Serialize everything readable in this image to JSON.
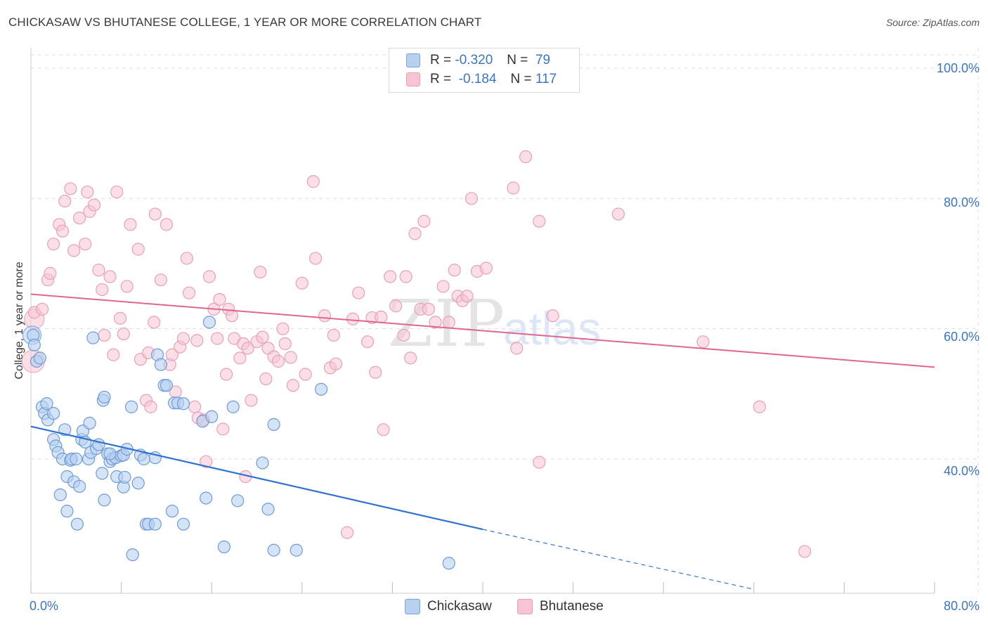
{
  "title": "CHICKASAW VS BHUTANESE COLLEGE, 1 YEAR OR MORE CORRELATION CHART",
  "source": "Source: ZipAtlas.com",
  "watermark": "ZIPatlas",
  "colors": {
    "blue": "#3a75c4",
    "blue_fill": "#b8d0f0",
    "blue_line": "#2f72d0",
    "pink_fill": "#f8c4d4",
    "pink_stroke": "#e8a0b8",
    "pink_line": "#e06690",
    "grid": "#dddddd"
  },
  "legend": {
    "rows": [
      {
        "r_label": "R =",
        "r_value": "-0.320",
        "n_label": "N =",
        "n_value": "79"
      },
      {
        "r_label": "R =",
        "r_value": "-0.184",
        "n_label": "N =",
        "n_value": "117"
      }
    ]
  },
  "chart_data": {
    "type": "scatter",
    "title": "CHICKASAW VS BHUTANESE COLLEGE, 1 YEAR OR MORE CORRELATION CHART",
    "xlabel": "",
    "ylabel": "College, 1 year or more",
    "xlim": [
      0,
      80
    ],
    "ylim": [
      20,
      103
    ],
    "x_ticks": [
      "0.0%",
      "80.0%"
    ],
    "y_ticks": [
      "40.0%",
      "60.0%",
      "80.0%",
      "100.0%"
    ],
    "grid": true,
    "legend_position": "top-center",
    "series": [
      {
        "name": "Chickasaw",
        "color": "#3a75c4",
        "trend": {
          "x0": 0,
          "y0": 45,
          "x1": 40,
          "y1": 29.2,
          "dash_to_x": 64,
          "dash_to_y": 20
        },
        "points": [
          [
            0.2,
            59
          ],
          [
            0.3,
            57.5
          ],
          [
            0.5,
            55
          ],
          [
            0.8,
            55.5
          ],
          [
            1,
            48
          ],
          [
            1.2,
            47
          ],
          [
            1.4,
            48.5
          ],
          [
            1.5,
            46
          ],
          [
            2,
            43
          ],
          [
            2.2,
            42
          ],
          [
            2.4,
            41
          ],
          [
            2.8,
            40
          ],
          [
            3,
            44.5
          ],
          [
            3.2,
            37.3
          ],
          [
            3.5,
            39.8
          ],
          [
            3.6,
            40
          ],
          [
            2.6,
            34.5
          ],
          [
            3.2,
            32
          ],
          [
            3.8,
            36.5
          ],
          [
            4.3,
            35.8
          ],
          [
            4.1,
            30
          ],
          [
            4.5,
            43
          ],
          [
            4.6,
            44.3
          ],
          [
            4.8,
            42.6
          ],
          [
            5.1,
            40
          ],
          [
            5.3,
            41
          ],
          [
            5.2,
            45.5
          ],
          [
            5.8,
            41.6
          ],
          [
            6,
            42.2
          ],
          [
            6.3,
            37.8
          ],
          [
            6.4,
            49
          ],
          [
            6.5,
            49.5
          ],
          [
            6.8,
            40.8
          ],
          [
            7,
            39.6
          ],
          [
            7.2,
            40
          ],
          [
            7.5,
            40.2
          ],
          [
            7.6,
            37.3
          ],
          [
            8,
            40.5
          ],
          [
            8.2,
            40.6
          ],
          [
            8.2,
            35.7
          ],
          [
            8.3,
            37.2
          ],
          [
            8.5,
            41.5
          ],
          [
            8.9,
            48
          ],
          [
            9.5,
            36.3
          ],
          [
            9.7,
            40.6
          ],
          [
            10.2,
            30
          ],
          [
            10.4,
            30
          ],
          [
            11,
            40.2
          ],
          [
            11.2,
            56
          ],
          [
            11.5,
            54.5
          ],
          [
            11.8,
            51.3
          ],
          [
            12,
            51.3
          ],
          [
            12.5,
            32
          ],
          [
            12.7,
            48.6
          ],
          [
            13,
            48.6
          ],
          [
            13.5,
            30
          ],
          [
            15.2,
            45.8
          ],
          [
            15.5,
            34
          ],
          [
            15.8,
            61
          ],
          [
            16,
            46.5
          ],
          [
            17.1,
            26.5
          ],
          [
            17.9,
            48
          ],
          [
            18.3,
            33.6
          ],
          [
            20.5,
            39.4
          ],
          [
            21,
            32.3
          ],
          [
            21.5,
            45.3
          ],
          [
            21.5,
            26
          ],
          [
            23.5,
            26
          ],
          [
            25.7,
            50.7
          ],
          [
            37,
            24
          ],
          [
            5.5,
            58.6
          ],
          [
            11,
            30
          ],
          [
            6.5,
            33.7
          ],
          [
            9,
            25.3
          ],
          [
            7,
            40.8
          ],
          [
            13.5,
            48.5
          ],
          [
            10,
            40
          ],
          [
            4,
            40
          ],
          [
            2,
            47
          ]
        ]
      },
      {
        "name": "Bhutanese",
        "color": "#e8a0b8",
        "trend": {
          "x0": 0,
          "y0": 65.3,
          "x1": 80,
          "y1": 54.1
        },
        "points": [
          [
            0.3,
            62.5
          ],
          [
            0.5,
            55
          ],
          [
            1,
            63
          ],
          [
            1.5,
            67.5
          ],
          [
            1.7,
            68.5
          ],
          [
            2,
            73
          ],
          [
            2.5,
            76
          ],
          [
            2.8,
            75
          ],
          [
            3,
            79.6
          ],
          [
            3.5,
            81.5
          ],
          [
            3.8,
            72
          ],
          [
            4.3,
            77
          ],
          [
            4.8,
            73
          ],
          [
            5,
            81
          ],
          [
            5.2,
            78
          ],
          [
            5.6,
            79
          ],
          [
            6,
            69
          ],
          [
            6.3,
            66
          ],
          [
            6.5,
            59
          ],
          [
            7,
            68
          ],
          [
            7.3,
            56
          ],
          [
            7.6,
            81
          ],
          [
            7.9,
            61.6
          ],
          [
            8.2,
            59.2
          ],
          [
            8.5,
            66.5
          ],
          [
            8.8,
            76
          ],
          [
            9.5,
            72.2
          ],
          [
            9.7,
            55.3
          ],
          [
            10.2,
            49
          ],
          [
            10.4,
            56.3
          ],
          [
            10.6,
            48
          ],
          [
            10.9,
            61
          ],
          [
            11,
            77.6
          ],
          [
            11.5,
            67.5
          ],
          [
            12,
            76
          ],
          [
            12.3,
            54.5
          ],
          [
            12.5,
            56
          ],
          [
            12.8,
            50.3
          ],
          [
            13.2,
            57.2
          ],
          [
            13.5,
            58.5
          ],
          [
            13.8,
            70.8
          ],
          [
            14,
            65.5
          ],
          [
            14.5,
            48
          ],
          [
            14.8,
            46.3
          ],
          [
            15.3,
            46
          ],
          [
            15.5,
            39.6
          ],
          [
            15.8,
            68
          ],
          [
            16.2,
            63
          ],
          [
            16.5,
            58.5
          ],
          [
            16.7,
            64.5
          ],
          [
            17,
            44.6
          ],
          [
            17.3,
            53
          ],
          [
            17.5,
            63
          ],
          [
            17.8,
            62
          ],
          [
            18,
            58.5
          ],
          [
            18.5,
            55.5
          ],
          [
            18.8,
            57.7
          ],
          [
            19,
            37.3
          ],
          [
            19.2,
            57
          ],
          [
            19.5,
            49
          ],
          [
            20,
            58
          ],
          [
            20.3,
            68.7
          ],
          [
            20.5,
            58.7
          ],
          [
            20.8,
            52.3
          ],
          [
            21,
            57
          ],
          [
            21.5,
            55.7
          ],
          [
            21.9,
            55
          ],
          [
            22.3,
            60
          ],
          [
            22.5,
            57.7
          ],
          [
            23,
            55.6
          ],
          [
            23.2,
            51.3
          ],
          [
            24,
            67
          ],
          [
            24.3,
            53
          ],
          [
            25,
            82.6
          ],
          [
            25.2,
            70.8
          ],
          [
            26,
            62
          ],
          [
            26.5,
            54
          ],
          [
            26.8,
            59
          ],
          [
            27,
            54.6
          ],
          [
            28,
            28.7
          ],
          [
            28.5,
            61.5
          ],
          [
            29,
            65.5
          ],
          [
            29.8,
            58
          ],
          [
            30.2,
            61.7
          ],
          [
            30.5,
            53.3
          ],
          [
            31,
            61.8
          ],
          [
            31.2,
            44.5
          ],
          [
            31.8,
            68
          ],
          [
            32.3,
            63.5
          ],
          [
            33,
            59
          ],
          [
            33.2,
            68
          ],
          [
            33.6,
            55.5
          ],
          [
            34,
            74.6
          ],
          [
            34.5,
            63
          ],
          [
            34.8,
            76.5
          ],
          [
            35.2,
            63
          ],
          [
            35.8,
            61
          ],
          [
            36.5,
            66.5
          ],
          [
            37,
            61
          ],
          [
            37.5,
            69
          ],
          [
            37.8,
            65
          ],
          [
            38.2,
            64.3
          ],
          [
            38.6,
            65
          ],
          [
            39,
            80
          ],
          [
            39.5,
            68.8
          ],
          [
            40.3,
            69.3
          ],
          [
            42.7,
            81.6
          ],
          [
            43,
            57
          ],
          [
            43.8,
            86.4
          ],
          [
            45,
            76.5
          ],
          [
            45,
            39.5
          ],
          [
            46.2,
            62
          ],
          [
            52,
            77.6
          ],
          [
            59.5,
            58
          ],
          [
            64.5,
            48
          ],
          [
            68.5,
            25.8
          ],
          [
            14.7,
            58.2
          ]
        ]
      }
    ]
  }
}
